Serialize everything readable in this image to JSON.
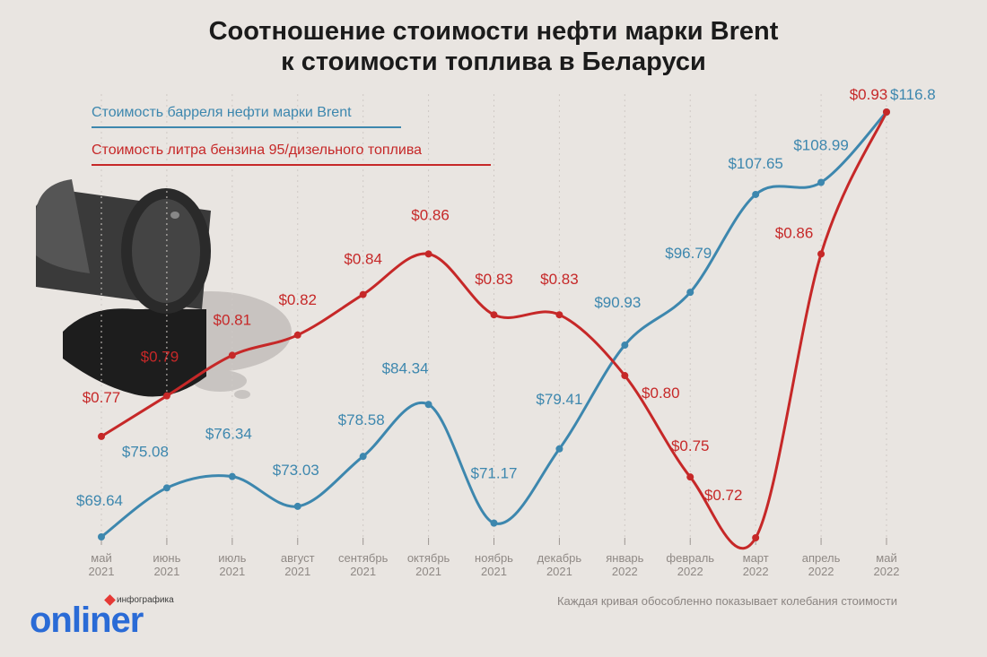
{
  "title_line1": "Соотношение стоимости нефти марки Brent",
  "title_line2": "к стоимости топлива в Беларуси",
  "legend": {
    "brent": "Стоимость барреля нефти марки Brent",
    "fuel": "Стоимость литра бензина 95/дизельного топлива"
  },
  "footnote": "Каждая кривая обособленно показывает колебания стоимости",
  "logo": {
    "tag": "инфографика",
    "name": "onliner"
  },
  "colors": {
    "brent": "#3d87ae",
    "fuel": "#c62828",
    "background": "#e9e5e1",
    "axis": "#9e9894"
  },
  "chart_data": {
    "type": "line",
    "categories": [
      [
        "май",
        "2021"
      ],
      [
        "июнь",
        "2021"
      ],
      [
        "июль",
        "2021"
      ],
      [
        "август",
        "2021"
      ],
      [
        "сентябрь",
        "2021"
      ],
      [
        "октябрь",
        "2021"
      ],
      [
        "ноябрь",
        "2021"
      ],
      [
        "декабрь",
        "2021"
      ],
      [
        "январь",
        "2022"
      ],
      [
        "февраль",
        "2022"
      ],
      [
        "март",
        "2022"
      ],
      [
        "апрель",
        "2022"
      ],
      [
        "май",
        "2022"
      ]
    ],
    "series": [
      {
        "name": "Стоимость барреля нефти марки Brent",
        "values": [
          69.64,
          75.08,
          76.34,
          73.03,
          78.58,
          84.34,
          71.17,
          79.41,
          90.93,
          96.79,
          107.65,
          108.99,
          116.8
        ],
        "labels": [
          "$69.64",
          "$75.08",
          "$76.34",
          "$73.03",
          "$78.58",
          "$84.34",
          "$71.17",
          "$79.41",
          "$90.93",
          "$96.79",
          "$107.65",
          "$108.99",
          "$116.8"
        ],
        "color": "#3d87ae"
      },
      {
        "name": "Стоимость литра бензина 95/дизельного топлива",
        "values": [
          0.77,
          0.79,
          0.81,
          0.82,
          0.84,
          0.86,
          0.83,
          0.83,
          0.8,
          0.75,
          0.72,
          0.86,
          0.93
        ],
        "labels": [
          "$0.77",
          "$0.79",
          "$0.81",
          "$0.82",
          "$0.84",
          "$0.86",
          "$0.83",
          "$0.83",
          "$0.80",
          "$0.75",
          "$0.72",
          "$0.86",
          "$0.93"
        ],
        "color": "#c62828"
      }
    ],
    "grid": "vertical dashed",
    "legend_position": "top-left"
  }
}
